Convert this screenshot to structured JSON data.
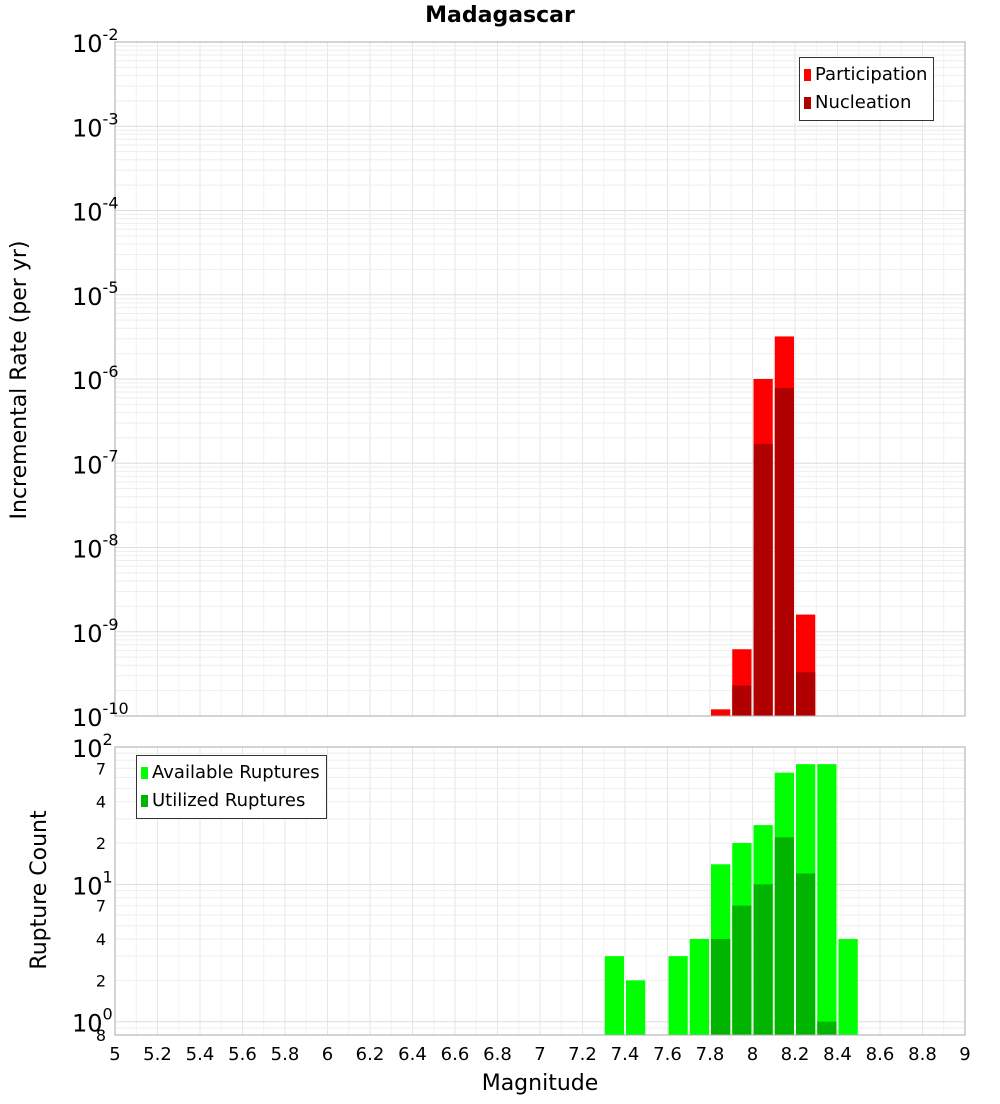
{
  "chart_data": [
    {
      "type": "bar",
      "title": "Madagascar",
      "xlabel": "",
      "ylabel": "Incremental Rate (per yr)",
      "yscale": "log",
      "ylim": [
        1e-10,
        0.01
      ],
      "xlim": [
        5,
        9
      ],
      "y_tick_labels": [
        {
          "base": "10",
          "exp": "-10"
        },
        {
          "base": "10",
          "exp": "-9"
        },
        {
          "base": "10",
          "exp": "-8"
        },
        {
          "base": "10",
          "exp": "-7"
        },
        {
          "base": "10",
          "exp": "-6"
        },
        {
          "base": "10",
          "exp": "-5"
        },
        {
          "base": "10",
          "exp": "-4"
        },
        {
          "base": "10",
          "exp": "-3"
        },
        {
          "base": "10",
          "exp": "-2"
        }
      ],
      "grid": true,
      "legend_position": "top-right",
      "bin_width": 0.1,
      "series": [
        {
          "name": "Participation",
          "color": "#ff0000",
          "points": [
            [
              7.85,
              1.2e-10
            ],
            [
              7.95,
              6.2e-10
            ],
            [
              8.05,
              1e-06
            ],
            [
              8.15,
              3.2e-06
            ],
            [
              8.25,
              1.6e-09
            ]
          ]
        },
        {
          "name": "Nucleation",
          "color": "#b00000",
          "points": [
            [
              7.95,
              2.3e-10
            ],
            [
              8.05,
              1.7e-07
            ],
            [
              8.15,
              7.8e-07
            ],
            [
              8.25,
              3.3e-10
            ]
          ]
        }
      ]
    },
    {
      "type": "bar",
      "title": "",
      "xlabel": "Magnitude",
      "ylabel": "Rupture Count",
      "yscale": "log",
      "ylim": [
        0.8,
        100
      ],
      "xlim": [
        5,
        9
      ],
      "x_tick_labels": [
        "5",
        "5.2",
        "5.4",
        "5.6",
        "5.8",
        "6",
        "6.2",
        "6.4",
        "6.6",
        "6.8",
        "7",
        "7.2",
        "7.4",
        "7.6",
        "7.8",
        "8",
        "8.2",
        "8.4",
        "8.6",
        "8.8",
        "9"
      ],
      "y_major_labels": [
        {
          "base": "10",
          "exp": "0"
        },
        {
          "base": "10",
          "exp": "1"
        },
        {
          "base": "10",
          "exp": "2"
        }
      ],
      "y_minor_labels": [
        "8",
        "2",
        "4",
        "7",
        "2",
        "4",
        "7"
      ],
      "grid": true,
      "legend_position": "top-left",
      "bin_width": 0.1,
      "series": [
        {
          "name": "Available Ruptures",
          "color": "#00ff00",
          "points": [
            [
              7.35,
              3
            ],
            [
              7.45,
              2
            ],
            [
              7.65,
              3
            ],
            [
              7.75,
              4
            ],
            [
              7.85,
              14
            ],
            [
              7.95,
              20
            ],
            [
              8.05,
              27
            ],
            [
              8.15,
              65
            ],
            [
              8.25,
              75
            ],
            [
              8.35,
              75
            ],
            [
              8.45,
              4
            ]
          ]
        },
        {
          "name": "Utilized Ruptures",
          "color": "#00b400",
          "points": [
            [
              7.85,
              4
            ],
            [
              7.95,
              7
            ],
            [
              8.05,
              10
            ],
            [
              8.15,
              22
            ],
            [
              8.25,
              12
            ],
            [
              8.35,
              1
            ]
          ]
        }
      ]
    }
  ]
}
